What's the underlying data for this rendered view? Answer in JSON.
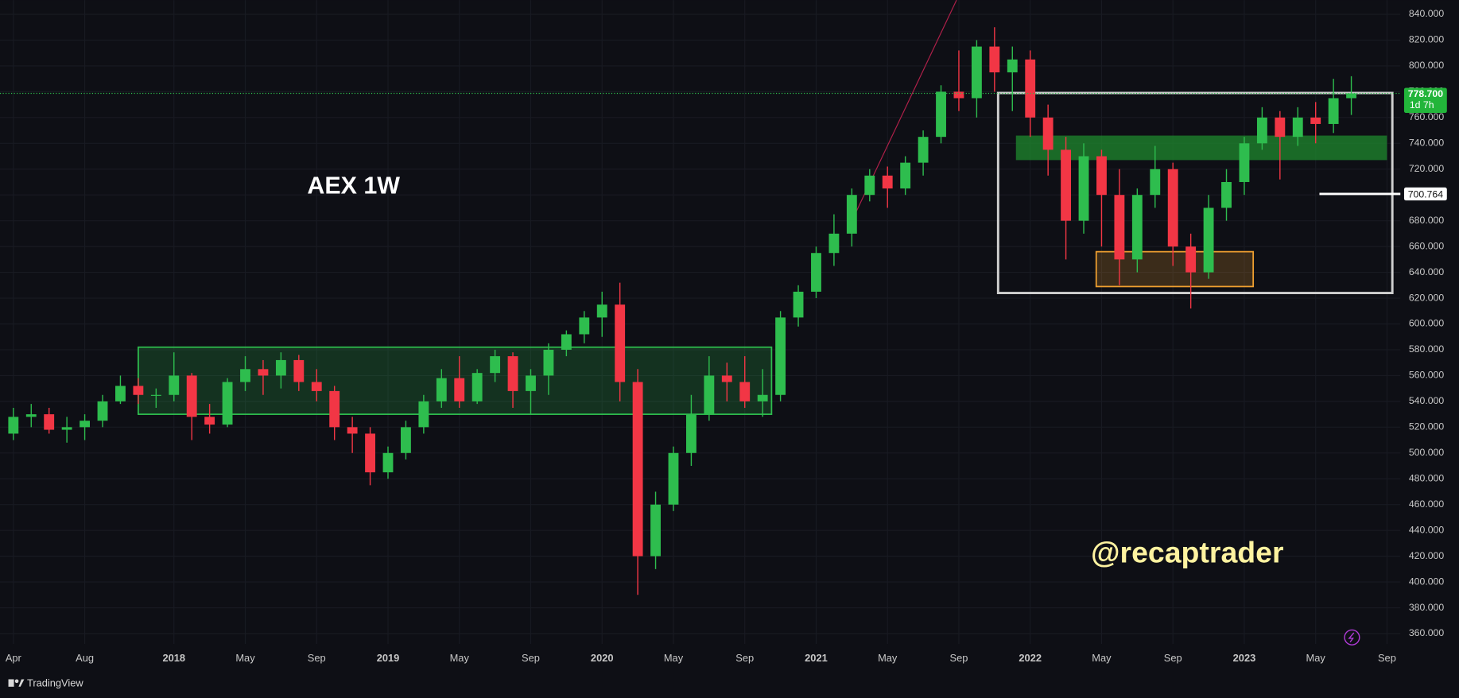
{
  "chart_data": {
    "type": "candlestick",
    "title": "AEX 1W",
    "watermark": "@recaptrader",
    "brand": "TradingView",
    "up_color": "#2ebd4e",
    "down_color": "#f23645",
    "grid": true,
    "x": [
      3,
      4,
      5,
      6,
      7,
      8,
      9,
      10,
      11,
      12,
      13,
      14,
      15,
      16,
      17,
      18,
      19,
      20,
      21,
      22,
      23,
      24,
      25,
      26,
      27,
      28,
      29,
      30,
      31,
      32,
      33,
      34,
      35,
      36,
      37,
      38,
      39,
      40,
      41,
      42,
      43,
      44,
      45,
      46,
      47,
      48,
      49,
      50,
      51,
      52,
      53,
      54,
      55,
      56,
      57,
      58,
      59,
      60,
      61,
      62,
      63,
      64,
      65,
      66,
      67,
      68,
      69,
      70,
      71,
      72,
      73,
      74,
      75,
      76,
      77,
      78
    ],
    "open": [
      515,
      528,
      530,
      518,
      520,
      525,
      540,
      552,
      545,
      545,
      560,
      528,
      522,
      555,
      565,
      560,
      572,
      555,
      548,
      520,
      515,
      485,
      500,
      520,
      540,
      558,
      540,
      562,
      575,
      548,
      560,
      580,
      592,
      605,
      615,
      555,
      420,
      460,
      500,
      530,
      560,
      555,
      540,
      545,
      605,
      625,
      655,
      670,
      700,
      715,
      705,
      725,
      745,
      780,
      775,
      815,
      795,
      805,
      760,
      735,
      680,
      730,
      700,
      650,
      700,
      720,
      660,
      640,
      690,
      710,
      740,
      760,
      745,
      760,
      755,
      775
    ],
    "high": [
      535,
      538,
      535,
      528,
      530,
      545,
      560,
      558,
      550,
      578,
      562,
      538,
      558,
      575,
      572,
      578,
      576,
      565,
      552,
      528,
      520,
      505,
      525,
      545,
      565,
      575,
      565,
      580,
      578,
      565,
      585,
      595,
      610,
      625,
      632,
      565,
      470,
      505,
      545,
      575,
      570,
      575,
      565,
      610,
      630,
      660,
      685,
      705,
      720,
      722,
      730,
      750,
      785,
      812,
      820,
      830,
      815,
      812,
      770,
      745,
      740,
      735,
      720,
      705,
      738,
      725,
      670,
      700,
      720,
      745,
      768,
      765,
      768,
      772,
      790,
      792
    ],
    "low": [
      510,
      520,
      515,
      508,
      510,
      520,
      538,
      538,
      535,
      540,
      510,
      515,
      520,
      548,
      545,
      550,
      548,
      540,
      510,
      500,
      475,
      480,
      495,
      515,
      535,
      535,
      538,
      555,
      535,
      530,
      545,
      575,
      585,
      590,
      540,
      390,
      410,
      455,
      490,
      525,
      540,
      535,
      528,
      540,
      598,
      620,
      645,
      660,
      695,
      690,
      700,
      715,
      740,
      765,
      760,
      780,
      765,
      745,
      715,
      650,
      670,
      660,
      630,
      640,
      690,
      645,
      612,
      635,
      680,
      700,
      735,
      712,
      738,
      740,
      748,
      762
    ],
    "close": [
      528,
      530,
      518,
      520,
      525,
      540,
      552,
      545,
      545,
      560,
      528,
      522,
      555,
      565,
      560,
      572,
      555,
      548,
      520,
      515,
      485,
      500,
      520,
      540,
      558,
      540,
      562,
      575,
      548,
      560,
      580,
      592,
      605,
      615,
      555,
      420,
      460,
      500,
      530,
      560,
      555,
      540,
      545,
      605,
      625,
      655,
      670,
      700,
      715,
      705,
      725,
      745,
      780,
      775,
      815,
      795,
      805,
      760,
      735,
      680,
      730,
      700,
      650,
      700,
      720,
      660,
      640,
      690,
      710,
      740,
      760,
      745,
      760,
      755,
      775,
      778.7
    ],
    "xlim": [
      2.25,
      80.75
    ],
    "ylim": [
      352,
      851
    ],
    "xticks": [
      {
        "value": 3,
        "label": "Apr"
      },
      {
        "value": 7,
        "label": "Aug"
      },
      {
        "value": 12,
        "label": "2018"
      },
      {
        "value": 16,
        "label": "May"
      },
      {
        "value": 20,
        "label": "Sep"
      },
      {
        "value": 24,
        "label": "2019"
      },
      {
        "value": 28,
        "label": "May"
      },
      {
        "value": 32,
        "label": "Sep"
      },
      {
        "value": 36,
        "label": "2020"
      },
      {
        "value": 40,
        "label": "May"
      },
      {
        "value": 44,
        "label": "Sep"
      },
      {
        "value": 48,
        "label": "2021"
      },
      {
        "value": 52,
        "label": "May"
      },
      {
        "value": 56,
        "label": "Sep"
      },
      {
        "value": 60,
        "label": "2022"
      },
      {
        "value": 64,
        "label": "May"
      },
      {
        "value": 68,
        "label": "Sep"
      },
      {
        "value": 72,
        "label": "2023"
      },
      {
        "value": 76,
        "label": "May"
      },
      {
        "value": 80,
        "label": "Sep"
      }
    ],
    "yticks": [
      {
        "value": 360,
        "label": "360.000"
      },
      {
        "value": 380,
        "label": "380.000"
      },
      {
        "value": 400,
        "label": "400.000"
      },
      {
        "value": 420,
        "label": "420.000"
      },
      {
        "value": 440,
        "label": "440.000"
      },
      {
        "value": 460,
        "label": "460.000"
      },
      {
        "value": 480,
        "label": "480.000"
      },
      {
        "value": 500,
        "label": "500.000"
      },
      {
        "value": 520,
        "label": "520.000"
      },
      {
        "value": 540,
        "label": "540.000"
      },
      {
        "value": 560,
        "label": "560.000"
      },
      {
        "value": 580,
        "label": "580.000"
      },
      {
        "value": 600,
        "label": "600.000"
      },
      {
        "value": 620,
        "label": "620.000"
      },
      {
        "value": 640,
        "label": "640.000"
      },
      {
        "value": 660,
        "label": "660.000"
      },
      {
        "value": 680,
        "label": "680.000"
      },
      {
        "value": 700,
        "label": "700.000"
      },
      {
        "value": 720,
        "label": "720.000"
      },
      {
        "value": 740,
        "label": "740.000"
      },
      {
        "value": 760,
        "label": "760.000"
      },
      {
        "value": 780,
        "label": "780.000"
      },
      {
        "value": 800,
        "label": "800.000"
      },
      {
        "value": 820,
        "label": "820.000"
      },
      {
        "value": 840,
        "label": "840.000"
      }
    ],
    "last_price": {
      "value": 778.7,
      "label": "778.700"
    },
    "countdown": "1d 7h",
    "level": 700.764,
    "zones": [
      {
        "x": [
          10,
          45.5
        ],
        "y": [
          530,
          582
        ],
        "color": "#2ebd4e"
      },
      {
        "x": [
          59.2,
          80
        ],
        "y": [
          727,
          746
        ],
        "color": "#1f8a2e"
      },
      {
        "x": [
          58.2,
          80.3
        ],
        "y": [
          624,
          779
        ],
        "color": "#cfcfcf"
      },
      {
        "x": [
          63.7,
          72.5
        ],
        "y": [
          629,
          656
        ],
        "color": "#f0a030"
      }
    ]
  }
}
